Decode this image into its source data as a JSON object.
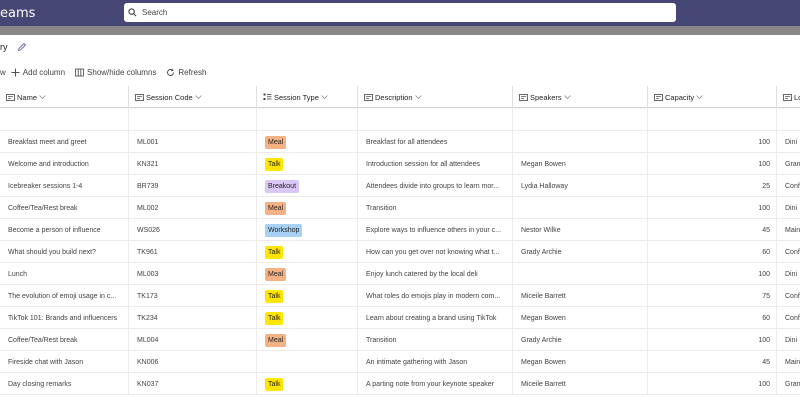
{
  "app": {
    "title": "eams",
    "search_placeholder": "Search"
  },
  "list": {
    "title": "ry"
  },
  "commands": {
    "new_label": "w",
    "add_column": "Add column",
    "show_hide": "Show/hide columns",
    "refresh": "Refresh"
  },
  "columns": [
    {
      "label": "Name"
    },
    {
      "label": "Session Code"
    },
    {
      "label": "Session Type"
    },
    {
      "label": "Description"
    },
    {
      "label": "Speakers"
    },
    {
      "label": "Capacity"
    },
    {
      "label": "Lo"
    }
  ],
  "pill_colors": {
    "Meal": "#f4b183",
    "Talk": "#ffe600",
    "Breakout": "#d9c7f5",
    "Workshop": "#a6d1f5"
  },
  "rows": [
    {
      "name": "Breakfast meet and greet",
      "code": "ML001",
      "type": "Meal",
      "description": "Breakfast for all attendees",
      "speakers": "",
      "capacity": "100",
      "location": "Dini"
    },
    {
      "name": "Welcome and introduction",
      "code": "KN321",
      "type": "Talk",
      "description": "Introduction session for all attendees",
      "speakers": "Megan Bowen",
      "capacity": "100",
      "location": "Gran"
    },
    {
      "name": "Icebreaker sessions 1-4",
      "code": "BR739",
      "type": "Breakout",
      "description": "Attendees divide into groups to learn mor...",
      "speakers": "Lydia Halloway",
      "capacity": "25",
      "location": "Conf"
    },
    {
      "name": "Coffee/Tea/Rest break",
      "code": "ML002",
      "type": "Meal",
      "description": "Transition",
      "speakers": "",
      "capacity": "100",
      "location": "Dini"
    },
    {
      "name": "Become a person of influence",
      "code": "WS026",
      "type": "Workshop",
      "description": "Explore ways to influence others in your c...",
      "speakers": "Nestor Wilke",
      "capacity": "45",
      "location": "Main"
    },
    {
      "name": "What should you build next?",
      "code": "TK961",
      "type": "Talk",
      "description": "How can you get over not knowing what t...",
      "speakers": "Grady Archie",
      "capacity": "60",
      "location": "Conf"
    },
    {
      "name": "Lunch",
      "code": "ML003",
      "type": "Meal",
      "description": "Enjoy lunch catered by the local deli",
      "speakers": "",
      "capacity": "100",
      "location": "Dini"
    },
    {
      "name": "The evolution of emoji usage in c...",
      "code": "TK173",
      "type": "Talk",
      "description": "What roles do emojis play in modern com...",
      "speakers": "Miceile Barrett",
      "capacity": "75",
      "location": "Conf"
    },
    {
      "name": "TikTok 101: Brands and influencers",
      "code": "TK234",
      "type": "Talk",
      "description": "Learn about creating a brand using TikTok",
      "speakers": "Megan Bowen",
      "capacity": "60",
      "location": "Conf"
    },
    {
      "name": "Coffee/Tea/Rest break",
      "code": "ML004",
      "type": "Meal",
      "description": "Transition",
      "speakers": "Grady Archie",
      "capacity": "100",
      "location": "Dini"
    },
    {
      "name": "Fireside chat with Jason",
      "code": "KN006",
      "type": "",
      "description": "An intimate gathering with Jason",
      "speakers": "Megan Bowen",
      "capacity": "45",
      "location": "Main"
    },
    {
      "name": "Day closing remarks",
      "code": "KN037",
      "type": "Talk",
      "description": "A parting note from your keynote speaker",
      "speakers": "Miceile Barrett",
      "capacity": "100",
      "location": "Gran"
    }
  ]
}
